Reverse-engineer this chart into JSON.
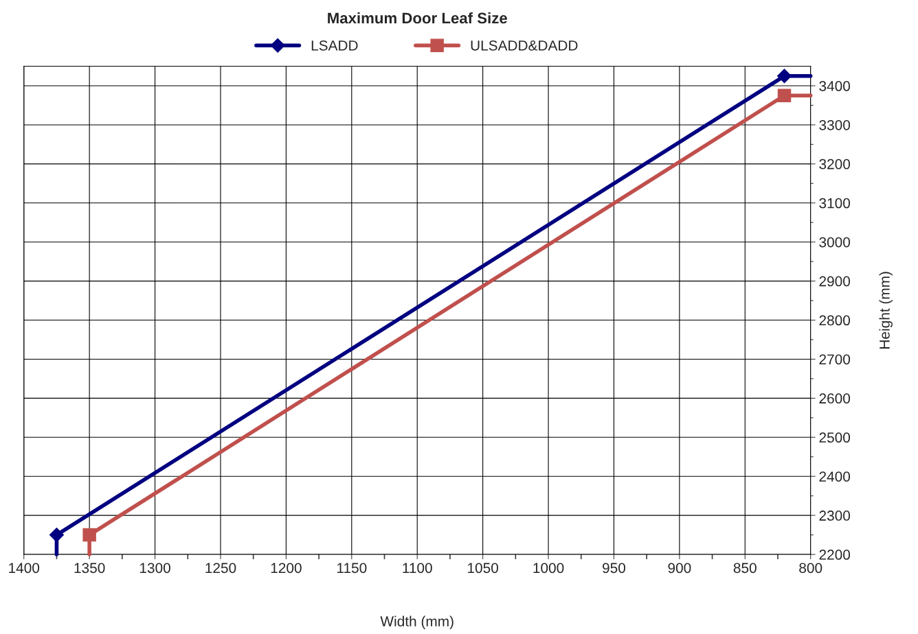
{
  "chart_data": {
    "type": "line",
    "title": "Maximum Door Leaf Size",
    "xlabel": "Width (mm)",
    "ylabel": "Height (mm)",
    "xlim": [
      1400,
      800
    ],
    "ylim": [
      2200,
      3450
    ],
    "xticks": [
      1400,
      {
        "value": 1375,
        "label": null
      },
      1350,
      {
        "value": 1325,
        "label": null
      },
      1300,
      {
        "value": 1275,
        "label": null
      },
      1250,
      {
        "value": 1225,
        "label": null
      },
      1200,
      {
        "value": 1175,
        "label": null
      },
      1150,
      {
        "value": 1125,
        "label": null
      },
      1100,
      {
        "value": 1075,
        "label": null
      },
      1050,
      {
        "value": 1025,
        "label": null
      },
      1000,
      {
        "value": 975,
        "label": null
      },
      950,
      {
        "value": 925,
        "label": null
      },
      900,
      {
        "value": 875,
        "label": null
      },
      850,
      {
        "value": 825,
        "label": null
      },
      800
    ],
    "yticks": [
      2200,
      {
        "value": 2250,
        "label": null
      },
      2300,
      {
        "value": 2350,
        "label": null
      },
      2400,
      {
        "value": 2450,
        "label": null
      },
      2500,
      {
        "value": 2550,
        "label": null
      },
      2600,
      {
        "value": 2650,
        "label": null
      },
      2700,
      {
        "value": 2750,
        "label": null
      },
      2800,
      {
        "value": 2850,
        "label": null
      },
      2900,
      {
        "value": 2950,
        "label": null
      },
      3000,
      {
        "value": 3050,
        "label": null
      },
      3100,
      {
        "value": 3150,
        "label": null
      },
      3200,
      {
        "value": 3250,
        "label": null
      },
      3300,
      {
        "value": 3350,
        "label": null
      },
      3400
    ],
    "grid": true,
    "legend": "top",
    "series": [
      {
        "name": "LSADD",
        "color": "#000080",
        "x": [
          1375,
          820
        ],
        "values": [
          2250,
          3425
        ],
        "marker": "diamond"
      },
      {
        "name": "ULSADD&DADD",
        "color": "#c0504d",
        "x": [
          1350,
          820
        ],
        "values": [
          2250,
          3375
        ],
        "marker": "square"
      },
      {
        "color": "#000080",
        "x": [
          1375,
          1375,
          null,
          820,
          800
        ],
        "values": [
          2200,
          2250,
          null,
          3425,
          3425
        ],
        "marker": "none"
      },
      {
        "color": "#c0504d",
        "x": [
          1350,
          1350,
          null,
          820,
          800
        ],
        "values": [
          2200,
          2250,
          null,
          3375,
          3375
        ],
        "marker": "none"
      }
    ]
  }
}
